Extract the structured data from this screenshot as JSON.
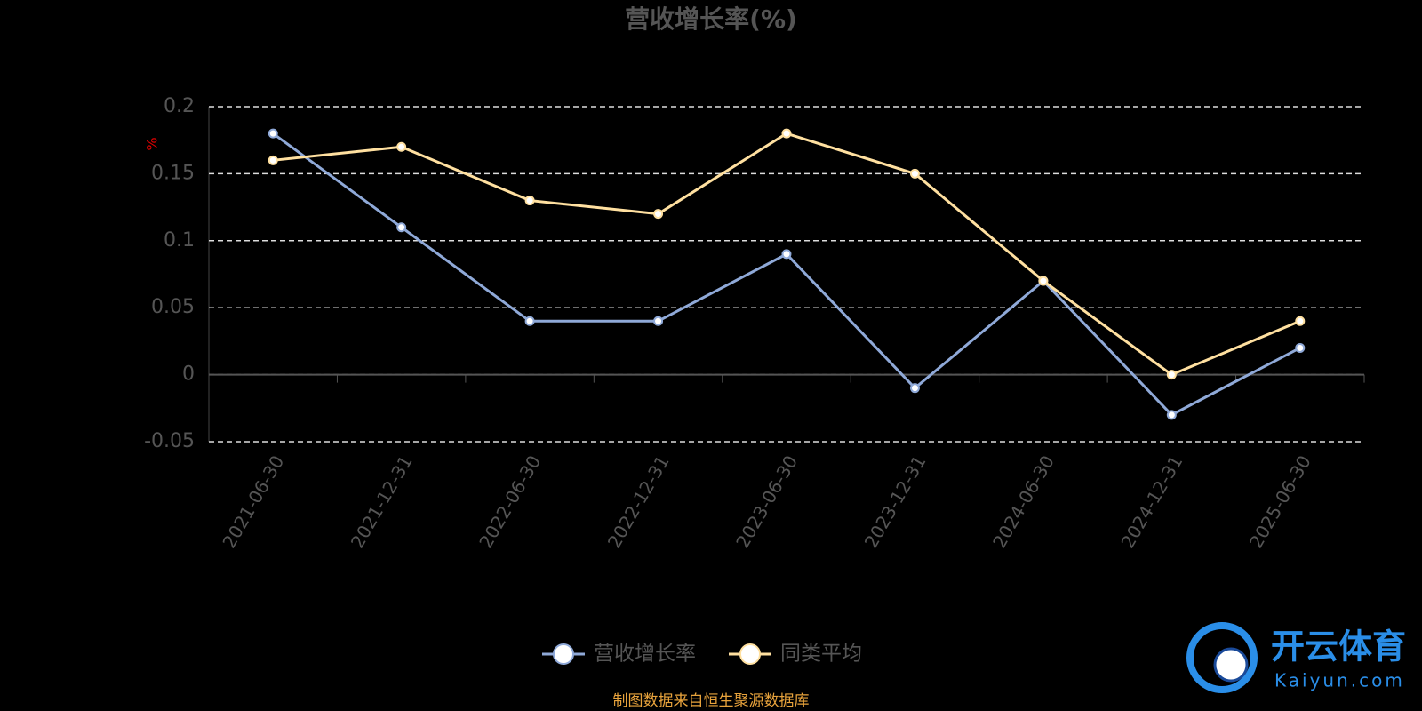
{
  "chart_data": {
    "type": "line",
    "title": "营收增长率(%)",
    "y_label": "%",
    "categories": [
      "2021-06-30",
      "2021-12-31",
      "2022-06-30",
      "2022-12-31",
      "2023-06-30",
      "2023-12-31",
      "2024-06-30",
      "2024-12-31",
      "2025-06-30"
    ],
    "series": [
      {
        "name": "营收增长率",
        "color": "#8fa9d8",
        "values": [
          0.18,
          0.11,
          0.04,
          0.04,
          0.09,
          -0.01,
          0.07,
          -0.03,
          0.02
        ]
      },
      {
        "name": "同类平均",
        "color": "#ffe0a0",
        "values": [
          0.16,
          0.17,
          0.13,
          0.12,
          0.18,
          0.15,
          0.07,
          0,
          0.04
        ]
      }
    ],
    "ylim": [
      -0.05,
      0.2
    ],
    "yticks": [
      -0.05,
      0,
      0.05,
      0.1,
      0.15,
      0.2
    ],
    "grid": true,
    "source": "制图数据来自恒生聚源数据库"
  },
  "watermark": {
    "brand": "开云体育",
    "site": "Kaiyun.com"
  }
}
